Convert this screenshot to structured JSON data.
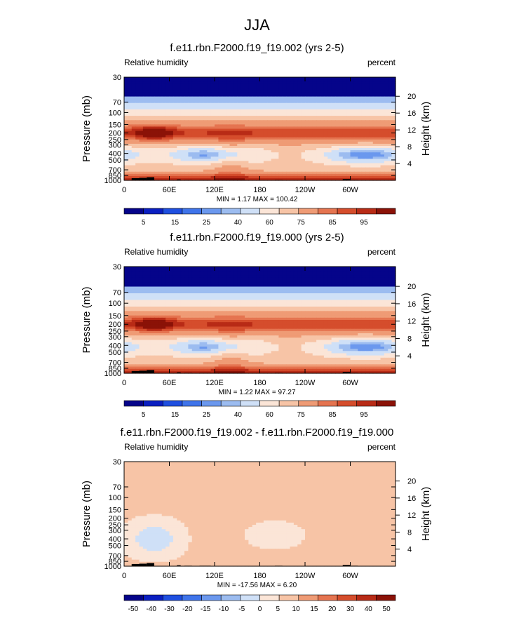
{
  "title": "JJA",
  "colors": {
    "rh": [
      "#05048a",
      "#0a1fc1",
      "#1f4fe0",
      "#3f74ea",
      "#6b98ee",
      "#9cbcf0",
      "#cfe0f7",
      "#fbe5d7",
      "#f7c4a6",
      "#ef9b75",
      "#e57450",
      "#d54d2c",
      "#b82b16",
      "#8b1207"
    ],
    "diff": [
      "#05048a",
      "#0a1fc1",
      "#1f4fe0",
      "#3f74ea",
      "#6b98ee",
      "#9cbcf0",
      "#cfe0f7",
      "#fbe5d7",
      "#f7c4a6",
      "#ef9b75",
      "#e57450",
      "#d54d2c",
      "#b82b16",
      "#8b1207"
    ]
  },
  "chart_data": [
    {
      "type": "heatmap",
      "title": "f.e11.rbn.F2000.f19_f19.002 (yrs 2-5)",
      "left_label": "Relative humidity",
      "right_label": "percent",
      "ylabel": "Pressure (mb)",
      "ylabel_right": "Height (km)",
      "x_ticks": [
        "0",
        "60E",
        "120E",
        "180",
        "120W",
        "60W"
      ],
      "x_tick_lon": [
        0,
        60,
        120,
        180,
        240,
        300
      ],
      "xlim": [
        0,
        360
      ],
      "y_ticks": [
        "30",
        "70",
        "100",
        "150",
        "200",
        "250",
        "300",
        "400",
        "500",
        "700",
        "850",
        "1000"
      ],
      "y_tick_values": [
        30,
        70,
        100,
        150,
        200,
        250,
        300,
        400,
        500,
        700,
        850,
        1000
      ],
      "ylim": [
        30,
        1000
      ],
      "height_ticks": [
        "4",
        "8",
        "12",
        "16",
        "20"
      ],
      "height_values": [
        4,
        8,
        12,
        16,
        20
      ],
      "min": 1.17,
      "max": 100.42,
      "stats_text": "MIN =   1.17  MAX = 100.42",
      "colorbar_labels": [
        "5",
        "15",
        "25",
        "40",
        "60",
        "75",
        "85",
        "95"
      ],
      "upper_dry_lon": 40,
      "dry_regions": [
        [
          120,
          60
        ],
        [
          320,
          60
        ]
      ],
      "moist_peak_lon": 140
    },
    {
      "type": "heatmap",
      "title": "f.e11.rbn.F2000.f19_f19.000 (yrs 2-5)",
      "left_label": "Relative humidity",
      "right_label": "percent",
      "ylabel": "Pressure (mb)",
      "ylabel_right": "Height (km)",
      "x_ticks": [
        "0",
        "60E",
        "120E",
        "180",
        "120W",
        "60W"
      ],
      "x_tick_lon": [
        0,
        60,
        120,
        180,
        240,
        300
      ],
      "xlim": [
        0,
        360
      ],
      "y_ticks": [
        "30",
        "70",
        "100",
        "150",
        "200",
        "250",
        "300",
        "400",
        "500",
        "700",
        "850",
        "1000"
      ],
      "y_tick_values": [
        30,
        70,
        100,
        150,
        200,
        250,
        300,
        400,
        500,
        700,
        850,
        1000
      ],
      "ylim": [
        30,
        1000
      ],
      "height_ticks": [
        "4",
        "8",
        "12",
        "16",
        "20"
      ],
      "height_values": [
        4,
        8,
        12,
        16,
        20
      ],
      "min": 1.22,
      "max": 97.27,
      "stats_text": "MIN =   1.22  MAX =  97.27",
      "colorbar_labels": [
        "5",
        "15",
        "25",
        "40",
        "60",
        "75",
        "85",
        "95"
      ],
      "upper_dry_lon": 40,
      "dry_regions": [
        [
          120,
          60
        ],
        [
          320,
          60
        ]
      ],
      "moist_peak_lon": 140
    },
    {
      "type": "heatmap",
      "title": "f.e11.rbn.F2000.f19_f19.002 - f.e11.rbn.F2000.f19_f19.000",
      "left_label": "Relative humidity",
      "right_label": "percent",
      "ylabel": "Pressure (mb)",
      "ylabel_right": "Height (km)",
      "x_ticks": [
        "0",
        "60E",
        "120E",
        "180",
        "120W",
        "60W"
      ],
      "x_tick_lon": [
        0,
        60,
        120,
        180,
        240,
        300
      ],
      "xlim": [
        0,
        360
      ],
      "y_ticks": [
        "30",
        "70",
        "100",
        "150",
        "200",
        "250",
        "300",
        "400",
        "500",
        "700",
        "850",
        "1000"
      ],
      "y_tick_values": [
        30,
        70,
        100,
        150,
        200,
        250,
        300,
        400,
        500,
        700,
        850,
        1000
      ],
      "ylim": [
        30,
        1000
      ],
      "height_ticks": [
        "4",
        "8",
        "12",
        "16",
        "20"
      ],
      "height_values": [
        4,
        8,
        12,
        16,
        20
      ],
      "min": -17.56,
      "max": 6.2,
      "stats_text": "MIN = -17.56  MAX =   6.20",
      "colorbar_labels": [
        "-50",
        "-40",
        "-30",
        "-20",
        "-15",
        "-10",
        "-5",
        "0",
        "5",
        "10",
        "15",
        "20",
        "30",
        "40",
        "50"
      ],
      "negative_core_lon": 40
    }
  ],
  "terrain_lon": [
    [
      10,
      20
    ],
    [
      20,
      30
    ],
    [
      30,
      40
    ],
    [
      70,
      75
    ],
    [
      80,
      90
    ],
    [
      100,
      110
    ],
    [
      110,
      115
    ],
    [
      200,
      210
    ],
    [
      290,
      300
    ],
    [
      300,
      310
    ]
  ]
}
